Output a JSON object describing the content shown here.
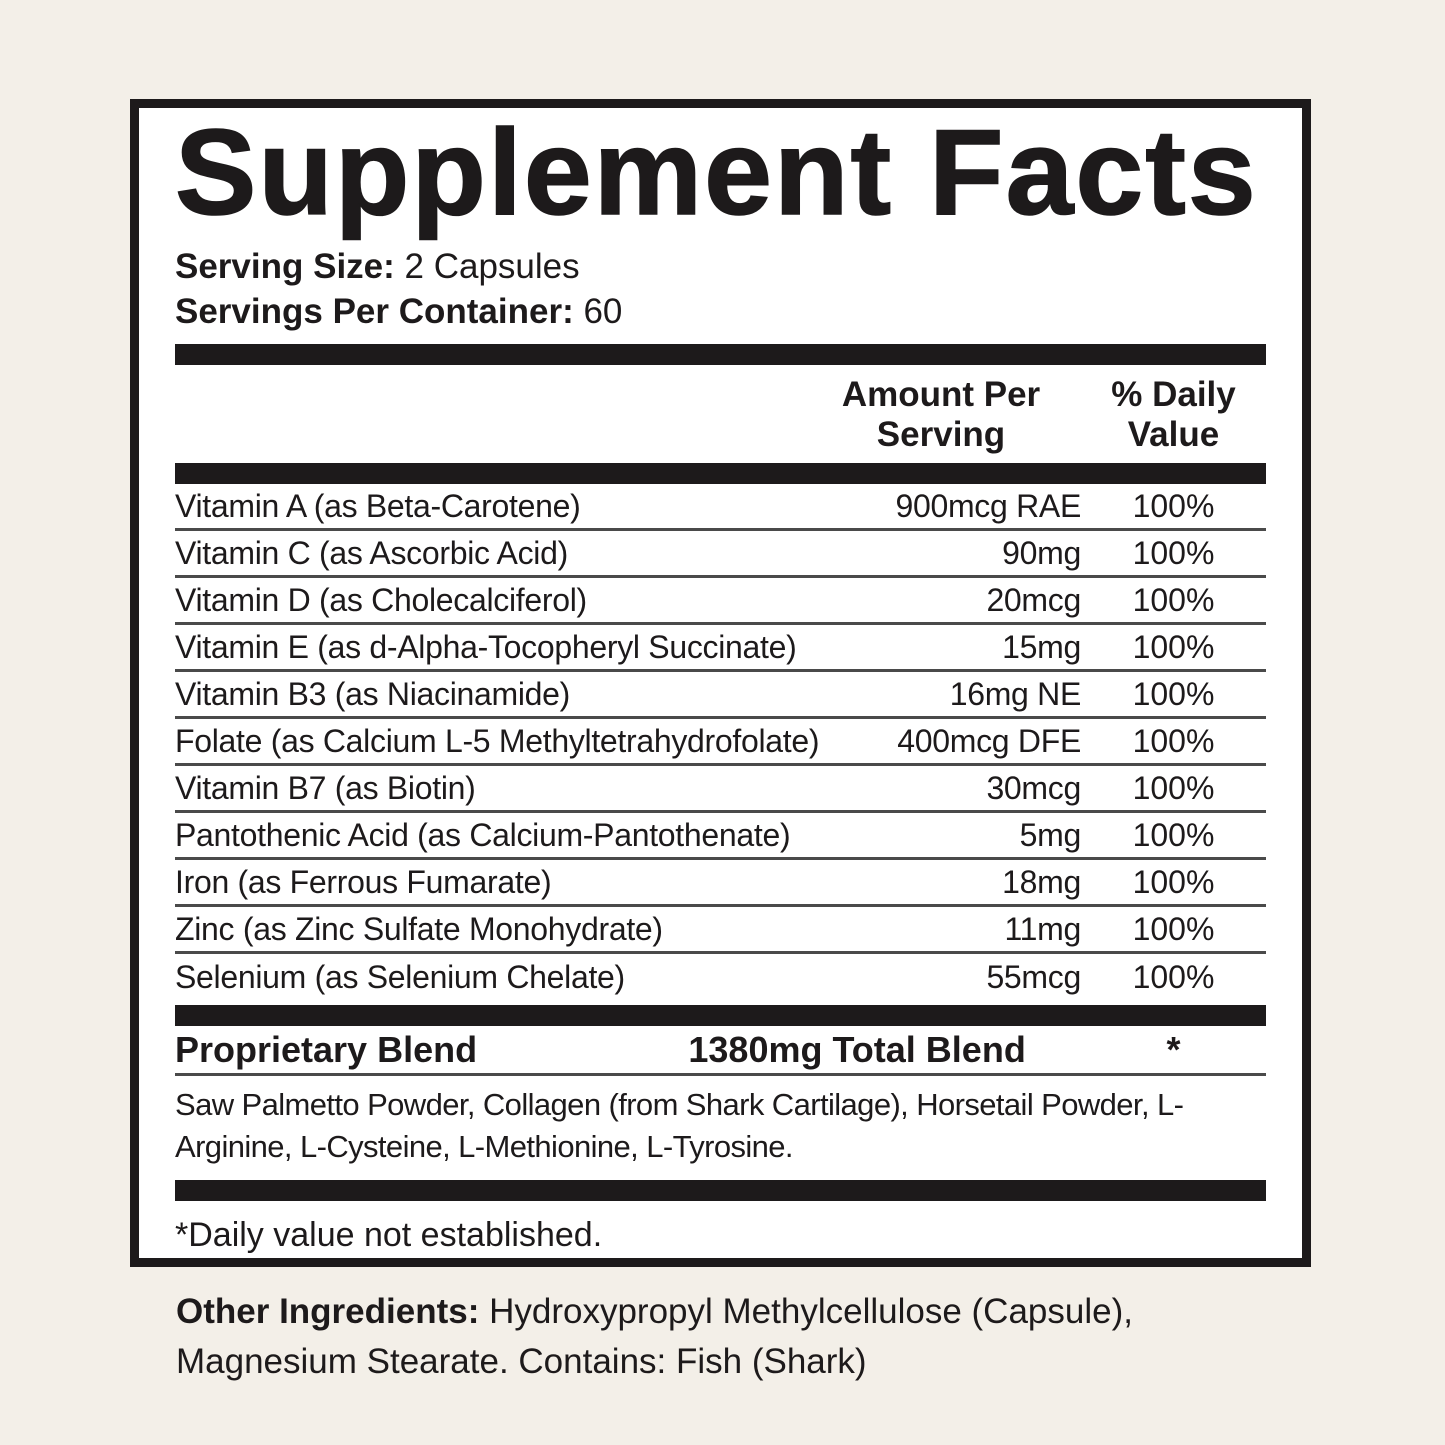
{
  "label": {
    "title": "Supplement Facts",
    "serving_size_label": "Serving Size:",
    "serving_size_value": "2 Capsules",
    "servings_per_container_label": "Servings Per Container:",
    "servings_per_container_value": "60",
    "columns": {
      "amount": "Amount Per Serving",
      "daily_value": "% Daily Value"
    }
  },
  "table": {
    "rows": [
      {
        "name": "Vitamin A (as Beta-Carotene)",
        "amount": "900mcg RAE",
        "dv": "100%"
      },
      {
        "name": "Vitamin C (as Ascorbic Acid)",
        "amount": "90mg",
        "dv": "100%"
      },
      {
        "name": "Vitamin D (as Cholecalciferol)",
        "amount": "20mcg",
        "dv": "100%"
      },
      {
        "name": "Vitamin E (as d-Alpha-Tocopheryl Succinate)",
        "amount": "15mg",
        "dv": "100%"
      },
      {
        "name": "Vitamin B3 (as Niacinamide)",
        "amount": "16mg NE",
        "dv": "100%"
      },
      {
        "name": "Folate (as Calcium L-5 Methyltetrahydrofolate)",
        "amount": "400mcg DFE",
        "dv": "100%"
      },
      {
        "name": "Vitamin B7 (as Biotin)",
        "amount": "30mcg",
        "dv": "100%"
      },
      {
        "name": "Pantothenic Acid (as Calcium-Pantothenate)",
        "amount": "5mg",
        "dv": "100%"
      },
      {
        "name": "Iron (as Ferrous Fumarate)",
        "amount": "18mg",
        "dv": "100%"
      },
      {
        "name": "Zinc (as Zinc Sulfate Monohydrate)",
        "amount": "11mg",
        "dv": "100%"
      },
      {
        "name": "Selenium (as Selenium Chelate)",
        "amount": "55mcg",
        "dv": "100%"
      }
    ]
  },
  "blend": {
    "name": "Proprietary Blend",
    "amount": "1380mg Total Blend",
    "dv": "*",
    "ingredients": "Saw Palmetto Powder, Collagen (from Shark Cartilage), Horsetail Powder, L-Arginine, L-Cysteine, L-Methionine, L-Tyrosine."
  },
  "footnote": "*Daily value not established.",
  "other_ingredients": {
    "label": "Other Ingredients:",
    "value": "Hydroxypropyl Methylcellulose (Capsule), Magnesium Stearate. Contains: Fish (Shark)"
  },
  "colors": {
    "background": "#f3efe8",
    "panel": "#ffffff",
    "ink": "#1d1a1b",
    "separator": "#4a4a4a"
  }
}
